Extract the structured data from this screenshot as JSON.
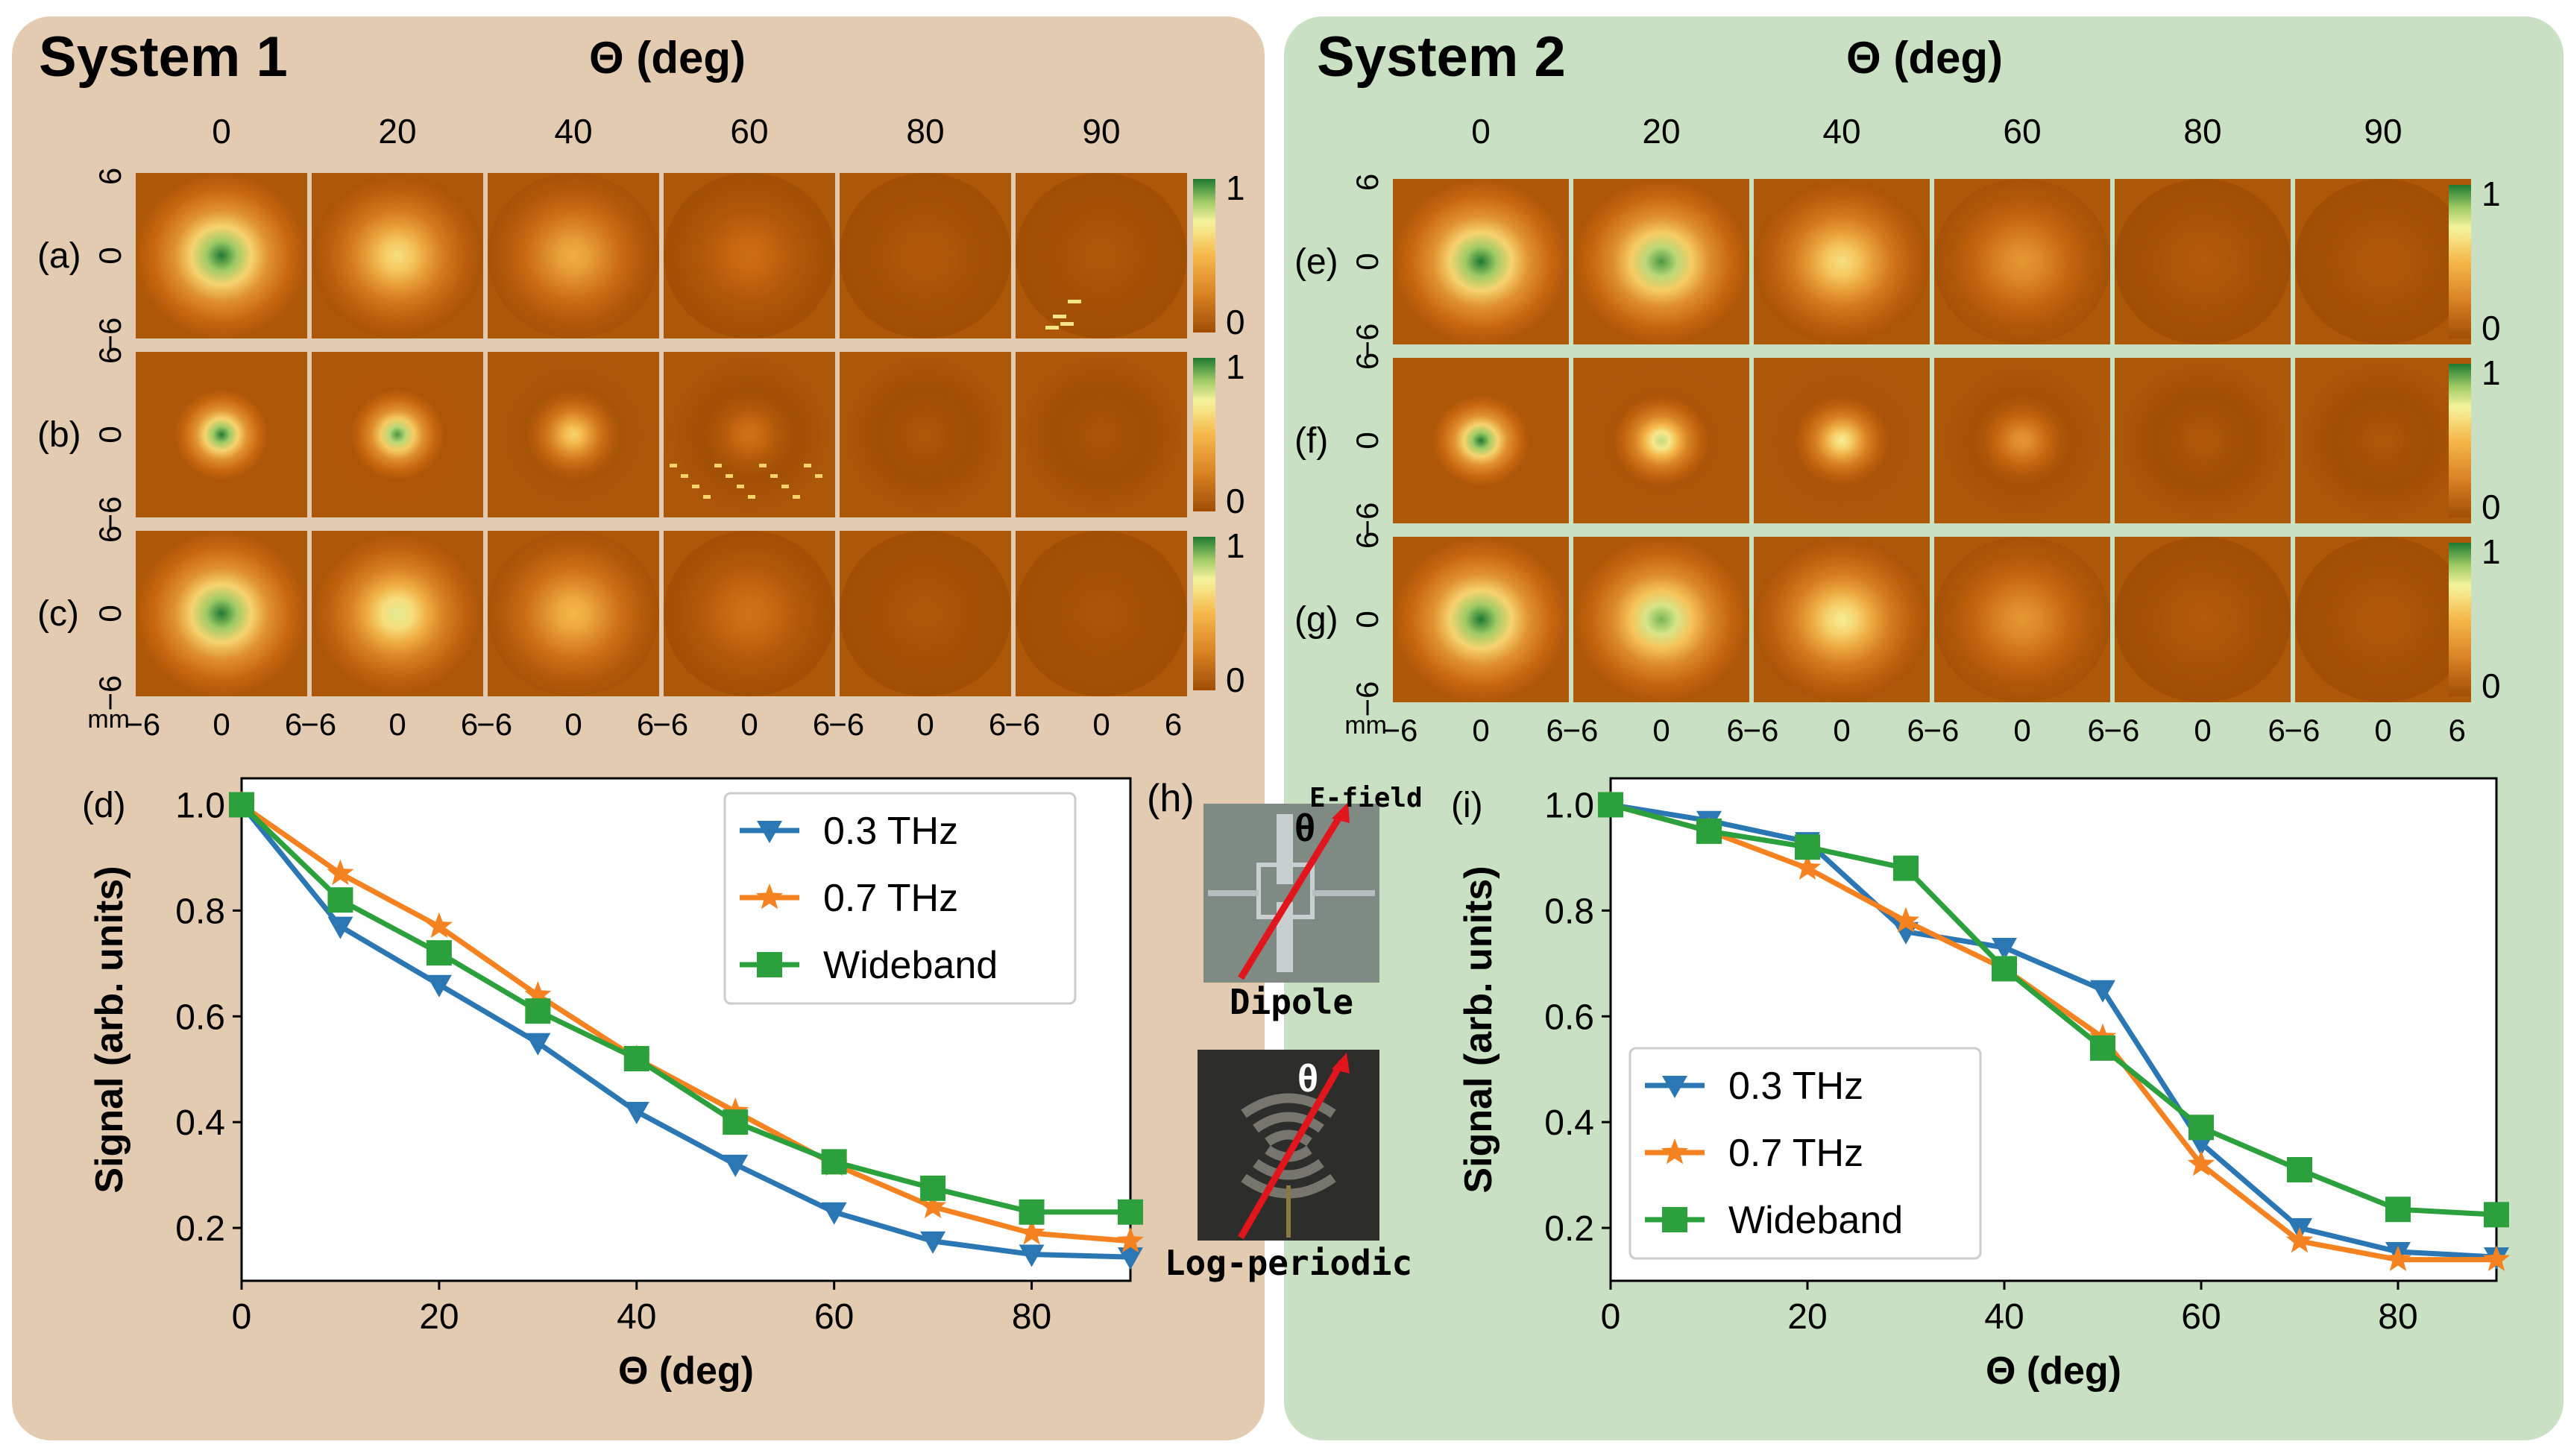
{
  "colors": {
    "panel1_bg": "#e2cbb1",
    "panel2_bg": "#c9e0c3",
    "series_0_3thz": "#2a77b4",
    "series_0_7thz": "#f58220",
    "series_wideband": "#2ca03c",
    "map_low": "#a04f05",
    "map_mid": "#f6f39c",
    "map_high": "#1f7a32",
    "red_arrow": "#e0161c"
  },
  "system1": {
    "title": "System 1",
    "theta_header": "Θ (deg)",
    "angles": [
      "0",
      "20",
      "40",
      "60",
      "80",
      "90"
    ],
    "row_labels": [
      "(a)",
      "(b)",
      "(c)"
    ],
    "ytick_labels": [
      "6",
      "0",
      "−6"
    ],
    "xtick_labels": [
      "−6",
      "0",
      "6"
    ],
    "unit_label": "mm",
    "colorbar_labels": [
      "1",
      "0"
    ],
    "maps_peak_intensity": [
      [
        1.0,
        0.65,
        0.45,
        0.15,
        0.05,
        0.04
      ],
      [
        1.0,
        0.95,
        0.6,
        0.18,
        0.04,
        0.03
      ],
      [
        1.0,
        0.75,
        0.5,
        0.18,
        0.04,
        0.03
      ]
    ],
    "maps_spot_size": [
      "large",
      "small",
      "large"
    ],
    "maps_stripes": {
      "b_60": true
    },
    "speckle_noise": {
      "row": 0,
      "col": 5,
      "present": true
    }
  },
  "system2": {
    "title": "System 2",
    "theta_header": "Θ (deg)",
    "angles": [
      "0",
      "20",
      "40",
      "60",
      "80",
      "90"
    ],
    "row_labels": [
      "(e)",
      "(f)",
      "(g)"
    ],
    "ytick_labels": [
      "6",
      "0",
      "−6"
    ],
    "xtick_labels": [
      "−6",
      "0",
      "6"
    ],
    "unit_label": "mm",
    "colorbar_labels": [
      "1",
      "0"
    ],
    "maps_peak_intensity": [
      [
        1.0,
        0.95,
        0.65,
        0.35,
        0.06,
        0.05
      ],
      [
        1.0,
        0.8,
        0.7,
        0.35,
        0.05,
        0.04
      ],
      [
        1.0,
        0.9,
        0.7,
        0.35,
        0.06,
        0.05
      ]
    ]
  },
  "inset_h": {
    "label": "(h)",
    "dipole_caption": "Dipole",
    "logperiodic_caption": "Log-periodic",
    "efield_label": "E-field",
    "theta_symbol": "θ"
  },
  "chart_data": [
    {
      "panel": "(d)",
      "type": "line",
      "xlabel": "Θ (deg)",
      "ylabel": "Signal (arb. units)",
      "xlim": [
        0,
        90
      ],
      "ylim": [
        0.1,
        1.05
      ],
      "xticks": [
        0,
        20,
        40,
        60,
        80
      ],
      "yticks": [
        0.2,
        0.4,
        0.6,
        0.8,
        1.0
      ],
      "ytick_labels": [
        "0.2",
        "0.4",
        "0.6",
        "0.8",
        "1.0"
      ],
      "legend_position": "top-right",
      "x": [
        0,
        10,
        20,
        30,
        40,
        50,
        60,
        70,
        80,
        90
      ],
      "series": [
        {
          "name": "0.3 THz",
          "color": "#2a77b4",
          "marker": "triangle-down",
          "values": [
            1.0,
            0.77,
            0.66,
            0.55,
            0.42,
            0.32,
            0.23,
            0.175,
            0.15,
            0.145
          ]
        },
        {
          "name": "0.7 THz",
          "color": "#f58220",
          "marker": "star",
          "values": [
            1.0,
            0.87,
            0.77,
            0.64,
            0.52,
            0.42,
            0.32,
            0.24,
            0.19,
            0.175
          ]
        },
        {
          "name": "Wideband",
          "color": "#2ca03c",
          "marker": "square",
          "values": [
            1.0,
            0.82,
            0.72,
            0.61,
            0.52,
            0.4,
            0.325,
            0.275,
            0.23,
            0.23
          ]
        }
      ]
    },
    {
      "panel": "(i)",
      "type": "line",
      "xlabel": "Θ (deg)",
      "ylabel": "Signal (arb. units)",
      "xlim": [
        0,
        90
      ],
      "ylim": [
        0.1,
        1.05
      ],
      "xticks": [
        0,
        20,
        40,
        60,
        80
      ],
      "yticks": [
        0.2,
        0.4,
        0.6,
        0.8,
        1.0
      ],
      "ytick_labels": [
        "0.2",
        "0.4",
        "0.6",
        "0.8",
        "1.0"
      ],
      "legend_position": "bottom-left",
      "x": [
        0,
        10,
        20,
        30,
        40,
        50,
        60,
        70,
        80,
        90
      ],
      "series": [
        {
          "name": "0.3 THz",
          "color": "#2a77b4",
          "marker": "triangle-down",
          "values": [
            1.0,
            0.97,
            0.93,
            0.76,
            0.73,
            0.65,
            0.36,
            0.2,
            0.155,
            0.145
          ]
        },
        {
          "name": "0.7 THz",
          "color": "#f58220",
          "marker": "star",
          "values": [
            1.0,
            0.95,
            0.88,
            0.78,
            0.69,
            0.56,
            0.32,
            0.175,
            0.14,
            0.14
          ]
        },
        {
          "name": "Wideband",
          "color": "#2ca03c",
          "marker": "square",
          "values": [
            1.0,
            0.95,
            0.92,
            0.88,
            0.69,
            0.54,
            0.39,
            0.31,
            0.235,
            0.225
          ]
        }
      ]
    }
  ]
}
